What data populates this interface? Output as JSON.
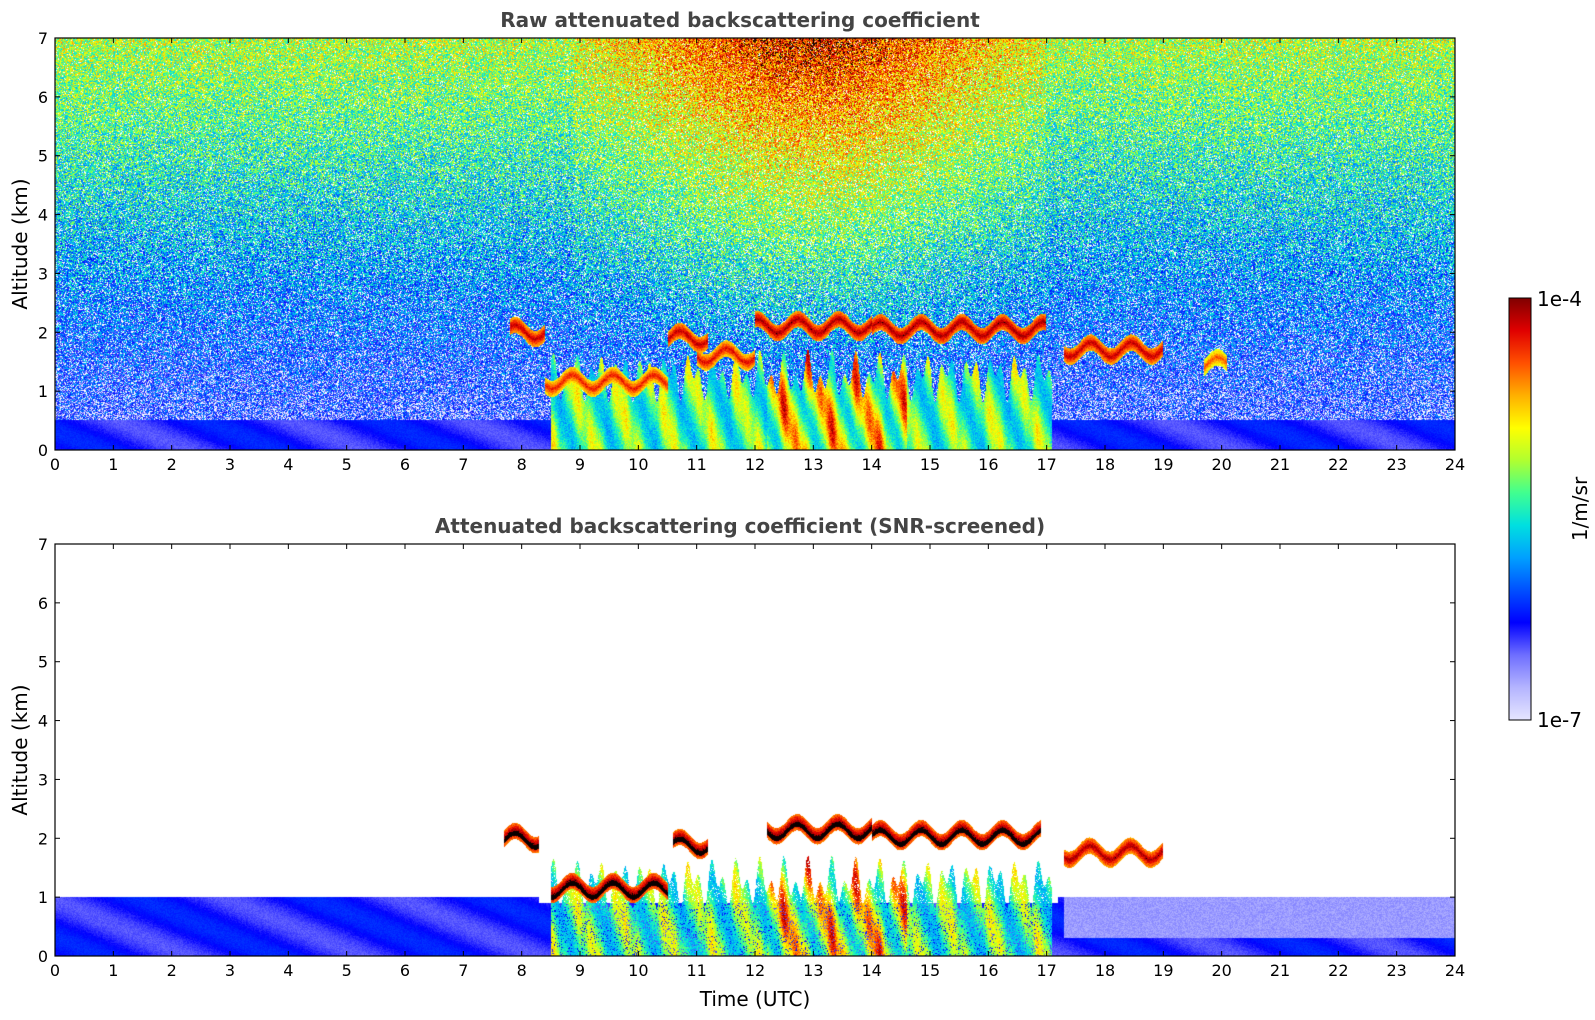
{
  "colors": {
    "background": "#ffffff",
    "title": "#444444",
    "colormap": [
      "#e6e6ff",
      "#b4b4ff",
      "#6e6eff",
      "#0000ff",
      "#0050ff",
      "#00a0ff",
      "#00e0e0",
      "#40ff90",
      "#b0ff30",
      "#ffff00",
      "#ffb000",
      "#ff5000",
      "#e00000",
      "#800000"
    ]
  },
  "colorbar": {
    "label": "1/m/sr",
    "max_label": "1e-4",
    "min_label": "1e-7",
    "vmin": 1e-07,
    "vmax": 0.0001,
    "scale": "log"
  },
  "chart_data": [
    {
      "type": "heatmap",
      "id": "raw",
      "title": "Raw attenuated backscattering coefficient",
      "xlabel": "",
      "ylabel": "Altitude (km)",
      "xlim": [
        0,
        24
      ],
      "ylim": [
        0,
        7
      ],
      "xticks": [
        "0",
        "1",
        "2",
        "3",
        "4",
        "5",
        "6",
        "7",
        "8",
        "9",
        "10",
        "11",
        "12",
        "13",
        "14",
        "15",
        "16",
        "17",
        "18",
        "19",
        "20",
        "21",
        "22",
        "23",
        "24"
      ],
      "yticks": [
        "0",
        "1",
        "2",
        "3",
        "4",
        "5",
        "6",
        "7"
      ],
      "features": {
        "boundary_layer": {
          "top_km": 0.5,
          "level": 0.22
        },
        "noise_background": "increasing with altitude; strongest 9-17 UTC",
        "cloud_layers": [
          {
            "t_start": 7.8,
            "t_end": 8.4,
            "alt_km": 2.0,
            "level": 0.95
          },
          {
            "t_start": 8.4,
            "t_end": 10.5,
            "alt_km": 1.15,
            "level": 0.9
          },
          {
            "t_start": 10.5,
            "t_end": 11.2,
            "alt_km": 1.9,
            "level": 0.95
          },
          {
            "t_start": 11.0,
            "t_end": 12.0,
            "alt_km": 1.6,
            "level": 0.92
          },
          {
            "t_start": 12.0,
            "t_end": 14.0,
            "alt_km": 2.1,
            "level": 0.97
          },
          {
            "t_start": 14.0,
            "t_end": 17.0,
            "alt_km": 2.05,
            "level": 0.97
          },
          {
            "t_start": 17.3,
            "t_end": 19.0,
            "alt_km": 1.7,
            "level": 0.95
          },
          {
            "t_start": 19.7,
            "t_end": 20.1,
            "alt_km": 1.45,
            "level": 0.85
          }
        ]
      }
    },
    {
      "type": "heatmap",
      "id": "screened",
      "title": "Attenuated backscattering coefficient (SNR-screened)",
      "xlabel": "Time (UTC)",
      "ylabel": "Altitude (km)",
      "xlim": [
        0,
        24
      ],
      "ylim": [
        0,
        7
      ],
      "xticks": [
        "0",
        "1",
        "2",
        "3",
        "4",
        "5",
        "6",
        "7",
        "8",
        "9",
        "10",
        "11",
        "12",
        "13",
        "14",
        "15",
        "16",
        "17",
        "18",
        "19",
        "20",
        "21",
        "22",
        "23",
        "24"
      ],
      "yticks": [
        "0",
        "1",
        "2",
        "3",
        "4",
        "5",
        "6",
        "7"
      ],
      "features": {
        "boundary_layer": {
          "top_km": 1.0,
          "level": 0.22
        },
        "cloud_layers": [
          {
            "t_start": 7.7,
            "t_end": 8.3,
            "alt_km": 2.0,
            "level": 1.0
          },
          {
            "t_start": 8.5,
            "t_end": 10.5,
            "alt_km": 1.15,
            "level": 1.0
          },
          {
            "t_start": 10.6,
            "t_end": 11.2,
            "alt_km": 1.9,
            "level": 1.0
          },
          {
            "t_start": 12.2,
            "t_end": 14.0,
            "alt_km": 2.15,
            "level": 1.0
          },
          {
            "t_start": 14.0,
            "t_end": 16.9,
            "alt_km": 2.05,
            "level": 1.0
          },
          {
            "t_start": 17.3,
            "t_end": 19.0,
            "alt_km": 1.75,
            "level": 0.97
          }
        ]
      }
    }
  ]
}
